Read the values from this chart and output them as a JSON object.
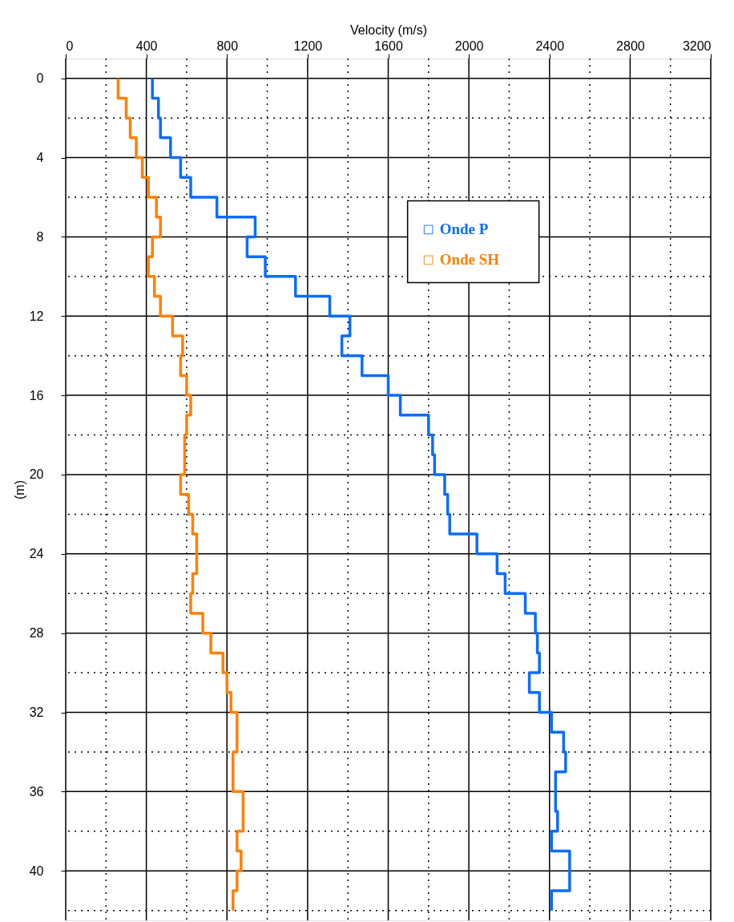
{
  "chart_data": {
    "type": "step",
    "orientation": "horizontal",
    "xlabel": "Velocity (m/s)",
    "ylabel": "(m)",
    "xlim": [
      0,
      3200
    ],
    "xticks": [
      0,
      {
        "value": 200,
        "label": null
      },
      400,
      {
        "value": 600,
        "label": null
      },
      800,
      {
        "value": 1000,
        "label": null
      },
      1200,
      {
        "value": 1400,
        "label": null
      },
      1600,
      {
        "value": 1800,
        "label": null
      },
      2000,
      {
        "value": 2200,
        "label": null
      },
      2400,
      {
        "value": 2600,
        "label": null
      },
      2800,
      {
        "value": 3000,
        "label": null
      },
      3200
    ],
    "ylim": [
      42.5,
      -1
    ],
    "yticks": [
      0,
      {
        "value": 2,
        "label": null
      },
      4,
      {
        "value": 6,
        "label": null
      },
      8,
      {
        "value": 10,
        "label": null
      },
      12,
      {
        "value": 14,
        "label": null
      },
      16,
      {
        "value": 18,
        "label": null
      },
      20,
      {
        "value": 22,
        "label": null
      },
      24,
      {
        "value": 26,
        "label": null
      },
      28,
      {
        "value": 30,
        "label": null
      },
      32,
      {
        "value": 34,
        "label": null
      },
      36,
      {
        "value": 38,
        "label": null
      },
      40,
      {
        "value": 42,
        "label": null
      }
    ],
    "x": [
      0,
      1,
      2,
      3,
      4,
      5,
      6,
      7,
      8,
      9,
      10,
      11,
      12,
      13,
      14,
      15,
      16,
      17,
      18,
      19,
      20,
      21,
      22,
      23,
      24,
      25,
      26,
      27,
      28,
      29,
      30,
      31,
      32,
      33,
      34,
      35,
      36,
      37,
      38,
      39,
      40,
      41,
      42
    ],
    "series": [
      {
        "name": "Onde P",
        "color": "#0a6cff",
        "values": [
          430,
          460,
          470,
          520,
          570,
          620,
          750,
          940,
          900,
          990,
          1140,
          1310,
          1410,
          1370,
          1470,
          1600,
          1660,
          1800,
          1820,
          1830,
          1880,
          1895,
          1905,
          2040,
          2140,
          2180,
          2280,
          2330,
          2340,
          2350,
          2300,
          2350,
          2410,
          2470,
          2480,
          2430,
          2430,
          2440,
          2410,
          2500,
          2500,
          2410,
          2410
        ]
      },
      {
        "name": "Onde SH",
        "color": "#ff8000",
        "values": [
          260,
          300,
          320,
          350,
          380,
          410,
          450,
          470,
          430,
          410,
          440,
          470,
          530,
          580,
          570,
          600,
          620,
          600,
          590,
          590,
          570,
          610,
          630,
          650,
          650,
          630,
          620,
          680,
          720,
          780,
          800,
          820,
          850,
          850,
          830,
          830,
          880,
          880,
          850,
          870,
          850,
          830,
          830
        ]
      }
    ],
    "grid": true,
    "legend": "top right"
  }
}
